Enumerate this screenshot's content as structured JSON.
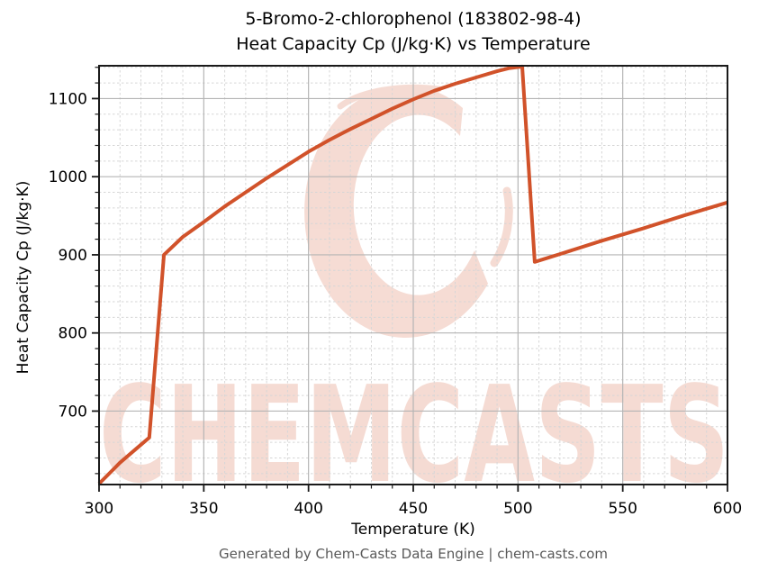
{
  "figure": {
    "title_line1": "5-Bromo-2-chlorophenol (183802-98-4)",
    "title_line2": "Heat Capacity Cp (J/kg·K) vs Temperature",
    "footer": "Generated by Chem-Casts Data Engine | chem-casts.com"
  },
  "chart_data": {
    "type": "line",
    "title": "5-Bromo-2-chlorophenol (183802-98-4) — Heat Capacity Cp (J/kg·K) vs Temperature",
    "xlabel": "Temperature (K)",
    "ylabel": "Heat Capacity Cp (J/kg·K)",
    "xlim": [
      300,
      600
    ],
    "ylim": [
      606,
      1142
    ],
    "x_major_ticks": [
      300,
      350,
      400,
      450,
      500,
      550,
      600
    ],
    "y_major_ticks": [
      700,
      800,
      900,
      1000,
      1100
    ],
    "x_minor_step": 10,
    "y_minor_step": 20,
    "grid": true,
    "legend_position": "none",
    "line_color": "#d1522a",
    "series": [
      {
        "name": "Heat Capacity Cp",
        "values": [
          [
            300,
            607
          ],
          [
            310,
            634
          ],
          [
            320,
            657
          ],
          [
            324,
            666
          ],
          [
            331,
            900
          ],
          [
            340,
            923
          ],
          [
            350,
            942
          ],
          [
            360,
            962
          ],
          [
            370,
            980
          ],
          [
            380,
            998
          ],
          [
            390,
            1015
          ],
          [
            400,
            1032
          ],
          [
            410,
            1047
          ],
          [
            420,
            1061
          ],
          [
            430,
            1074
          ],
          [
            440,
            1087
          ],
          [
            450,
            1099
          ],
          [
            460,
            1110
          ],
          [
            470,
            1119
          ],
          [
            480,
            1127
          ],
          [
            490,
            1135
          ],
          [
            496,
            1139
          ],
          [
            502,
            1141
          ],
          [
            508,
            891
          ],
          [
            520,
            901
          ],
          [
            540,
            918
          ],
          [
            560,
            934
          ],
          [
            580,
            951
          ],
          [
            600,
            967
          ]
        ]
      }
    ],
    "annotations": {
      "watermark_text": "CHEMCASTS",
      "watermark_color": "#d1522a",
      "watermark_opacity": 0.2
    }
  }
}
